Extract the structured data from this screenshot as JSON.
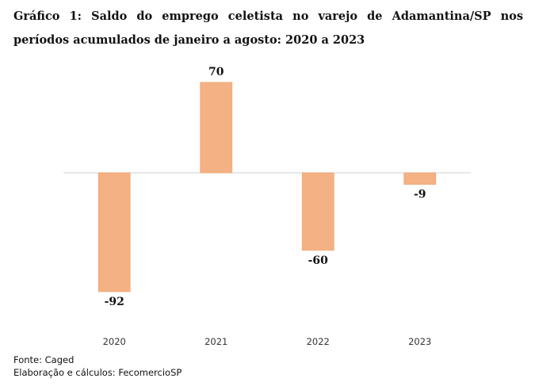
{
  "title": "Gráfico 1: Saldo do emprego celetista no varejo de Adamantina/SP nos períodos acumulados de janeiro a agosto: 2020 a 2023",
  "chart_data": {
    "type": "bar",
    "categories": [
      "2020",
      "2021",
      "2022",
      "2023"
    ],
    "values": [
      -92,
      70,
      -60,
      -9
    ],
    "data_labels": [
      "-92",
      "70",
      "-60",
      "-9"
    ],
    "xlabel": "",
    "ylabel": "",
    "ylim": [
      -92,
      70
    ],
    "grid": false,
    "legend": "none",
    "bar_color": "#F4B183",
    "bar_edge_color": "#F0A877",
    "baseline_color": "#D9D9D9"
  },
  "footer": {
    "source": "Fonte: Caged",
    "credits": "Elaboração e cálculos: FecomercioSP"
  }
}
